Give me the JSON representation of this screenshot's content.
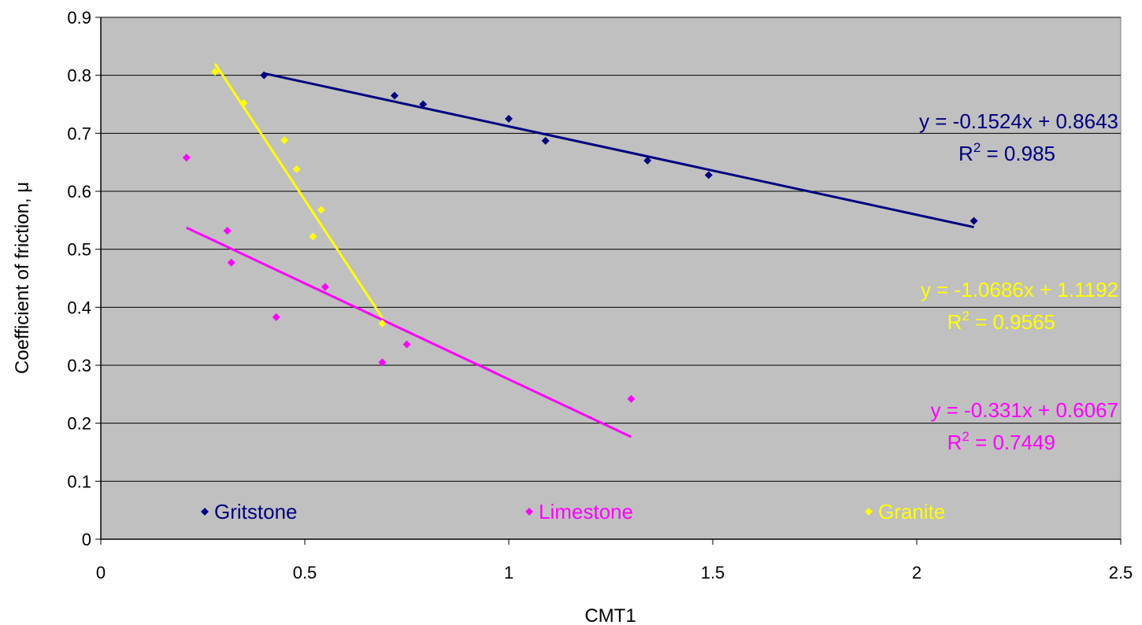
{
  "chart_data": {
    "type": "scatter",
    "title": "",
    "xlabel": "CMT1",
    "ylabel": "Coefficient of friction, μ",
    "xlim": [
      0,
      2.5
    ],
    "ylim": [
      0,
      0.9
    ],
    "xticks": [
      "0",
      "0.5",
      "1",
      "1.5",
      "2",
      "2.5"
    ],
    "yticks": [
      "0",
      "0.1",
      "0.2",
      "0.3",
      "0.4",
      "0.5",
      "0.6",
      "0.7",
      "0.8",
      "0.9"
    ],
    "x_tick_values": [
      0,
      0.5,
      1,
      1.5,
      2,
      2.5
    ],
    "y_tick_values": [
      0,
      0.1,
      0.2,
      0.3,
      0.4,
      0.5,
      0.6,
      0.7,
      0.8,
      0.9
    ],
    "grid": "horizontal",
    "plot_background": "#c0c0c0",
    "legend_position": "inside-bottom",
    "series": [
      {
        "name": "Gritstone",
        "color": "#000080",
        "points": [
          [
            0.4,
            0.8
          ],
          [
            0.72,
            0.765
          ],
          [
            0.79,
            0.75
          ],
          [
            1.0,
            0.725
          ],
          [
            1.09,
            0.687
          ],
          [
            1.34,
            0.653
          ],
          [
            1.49,
            0.628
          ],
          [
            2.14,
            0.549
          ]
        ],
        "trendline": {
          "x_range": [
            0.4,
            2.14
          ],
          "slope": -0.1524,
          "intercept": 0.8643
        },
        "equation": "y = -0.1524x + 0.8643",
        "r2_label": "R",
        "r2_sup": "2",
        "r2_value": " = 0.985"
      },
      {
        "name": "Limestone",
        "color": "#ff00ff",
        "points": [
          [
            0.21,
            0.658
          ],
          [
            0.31,
            0.532
          ],
          [
            0.32,
            0.477
          ],
          [
            0.43,
            0.383
          ],
          [
            0.55,
            0.435
          ],
          [
            0.69,
            0.305
          ],
          [
            0.75,
            0.336
          ],
          [
            1.3,
            0.242
          ]
        ],
        "trendline": {
          "x_range": [
            0.21,
            1.3
          ],
          "slope": -0.331,
          "intercept": 0.6067
        },
        "equation": "y = -0.331x + 0.6067",
        "r2_label": "R",
        "r2_sup": "2",
        "r2_value": " = 0.7449"
      },
      {
        "name": "Granite",
        "color": "#ffff00",
        "points": [
          [
            0.28,
            0.806
          ],
          [
            0.35,
            0.752
          ],
          [
            0.45,
            0.688
          ],
          [
            0.48,
            0.638
          ],
          [
            0.52,
            0.522
          ],
          [
            0.54,
            0.568
          ],
          [
            0.69,
            0.372
          ]
        ],
        "trendline": {
          "x_range": [
            0.28,
            0.69
          ],
          "slope": -1.0686,
          "intercept": 1.1192
        },
        "equation": "y = -1.0686x + 1.1192",
        "r2_label": "R",
        "r2_sup": "2",
        "r2_value": " = 0.9565"
      }
    ]
  }
}
